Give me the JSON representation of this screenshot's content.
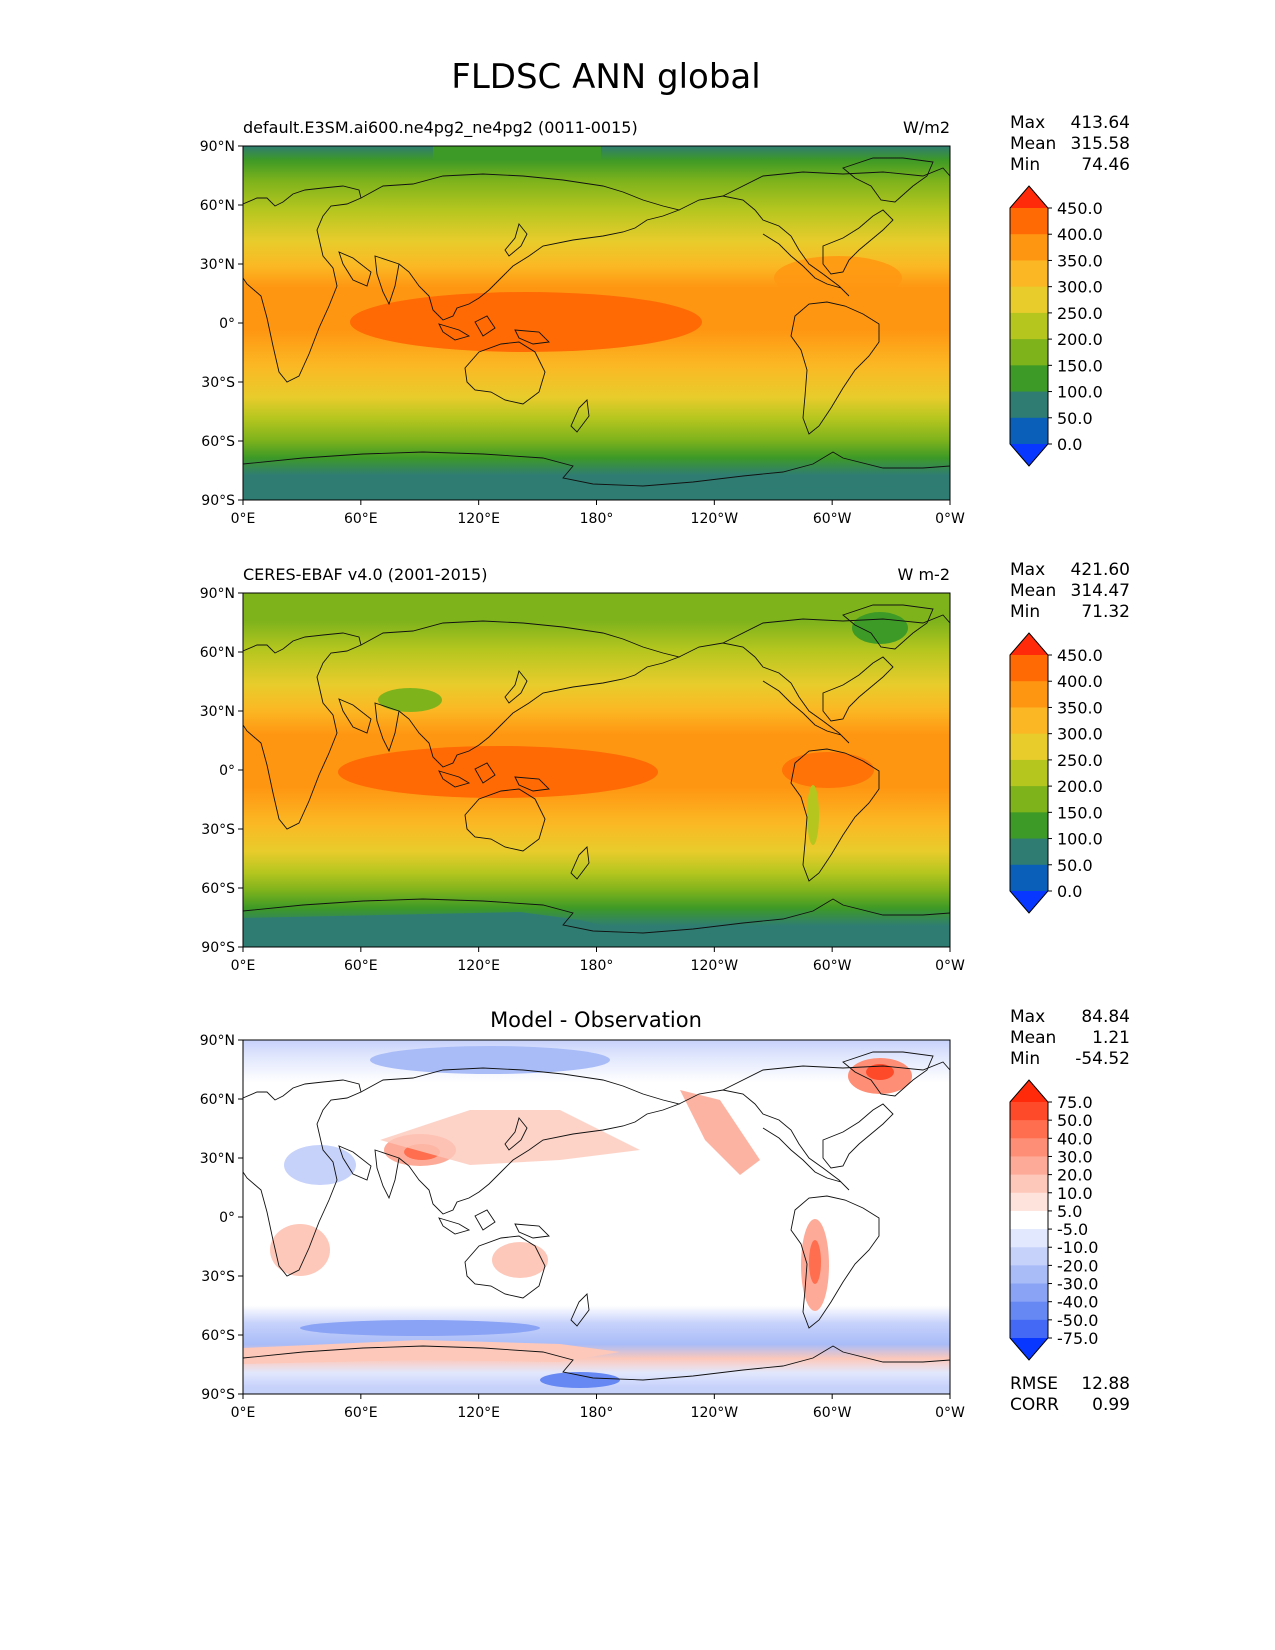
{
  "figure_title": "FLDSC ANN global",
  "axes": {
    "lat_ticks": [
      "90°N",
      "60°N",
      "30°N",
      "0°",
      "30°S",
      "60°S",
      "90°S"
    ],
    "lon_ticks": [
      "0°E",
      "60°E",
      "120°E",
      "180°",
      "120°W",
      "60°W",
      "0°W"
    ]
  },
  "panels": [
    {
      "left_title": "default.E3SM.ai600.ne4pg2_ne4pg2 (0011-0015)",
      "center_title": "",
      "right_title": "W/m2",
      "stats": {
        "max_label": "Max",
        "max": "413.64",
        "mean_label": "Mean",
        "mean": "315.58",
        "min_label": "Min",
        "min": "74.46"
      },
      "colorbar": {
        "ticks": [
          "450.0",
          "400.0",
          "350.0",
          "300.0",
          "250.0",
          "200.0",
          "150.0",
          "100.0",
          "50.0",
          "0.0"
        ],
        "colors": [
          "#ff2a0a",
          "#ff6a05",
          "#ff9612",
          "#fbb824",
          "#e8cc2c",
          "#b5c61f",
          "#7fb31c",
          "#3e9a26",
          "#2f7d72",
          "#0a60b8",
          "#0838ff"
        ]
      }
    },
    {
      "left_title": "CERES-EBAF v4.0 (2001-2015)",
      "center_title": "",
      "right_title": "W m-2",
      "stats": {
        "max_label": "Max",
        "max": "421.60",
        "mean_label": "Mean",
        "mean": "314.47",
        "min_label": "Min",
        "min": "71.32"
      },
      "colorbar": {
        "ticks": [
          "450.0",
          "400.0",
          "350.0",
          "300.0",
          "250.0",
          "200.0",
          "150.0",
          "100.0",
          "50.0",
          "0.0"
        ],
        "colors": [
          "#ff2a0a",
          "#ff6a05",
          "#ff9612",
          "#fbb824",
          "#e8cc2c",
          "#b5c61f",
          "#7fb31c",
          "#3e9a26",
          "#2f7d72",
          "#0a60b8",
          "#0838ff"
        ]
      }
    },
    {
      "left_title": "",
      "center_title": "Model - Observation",
      "right_title": "",
      "stats": {
        "max_label": "Max",
        "max": "84.84",
        "mean_label": "Mean",
        "mean": "1.21",
        "min_label": "Min",
        "min": "-54.52"
      },
      "colorbar": {
        "ticks": [
          "75.0",
          "50.0",
          "40.0",
          "30.0",
          "20.0",
          "10.0",
          "5.0",
          "-5.0",
          "-10.0",
          "-20.0",
          "-30.0",
          "-40.0",
          "-50.0",
          "-75.0"
        ],
        "colors": [
          "#ff2a0a",
          "#ff4a2a",
          "#ff6e4e",
          "#fe8e76",
          "#fdab98",
          "#fdc8ba",
          "#fee3dc",
          "#ffffff",
          "#e2e8fd",
          "#c7d2fb",
          "#a9bcf8",
          "#8aa3f5",
          "#6688f3",
          "#4469f5",
          "#0838ff"
        ]
      },
      "rmse_label": "RMSE",
      "rmse": "12.88",
      "corr_label": "CORR",
      "corr": "0.99"
    }
  ]
}
